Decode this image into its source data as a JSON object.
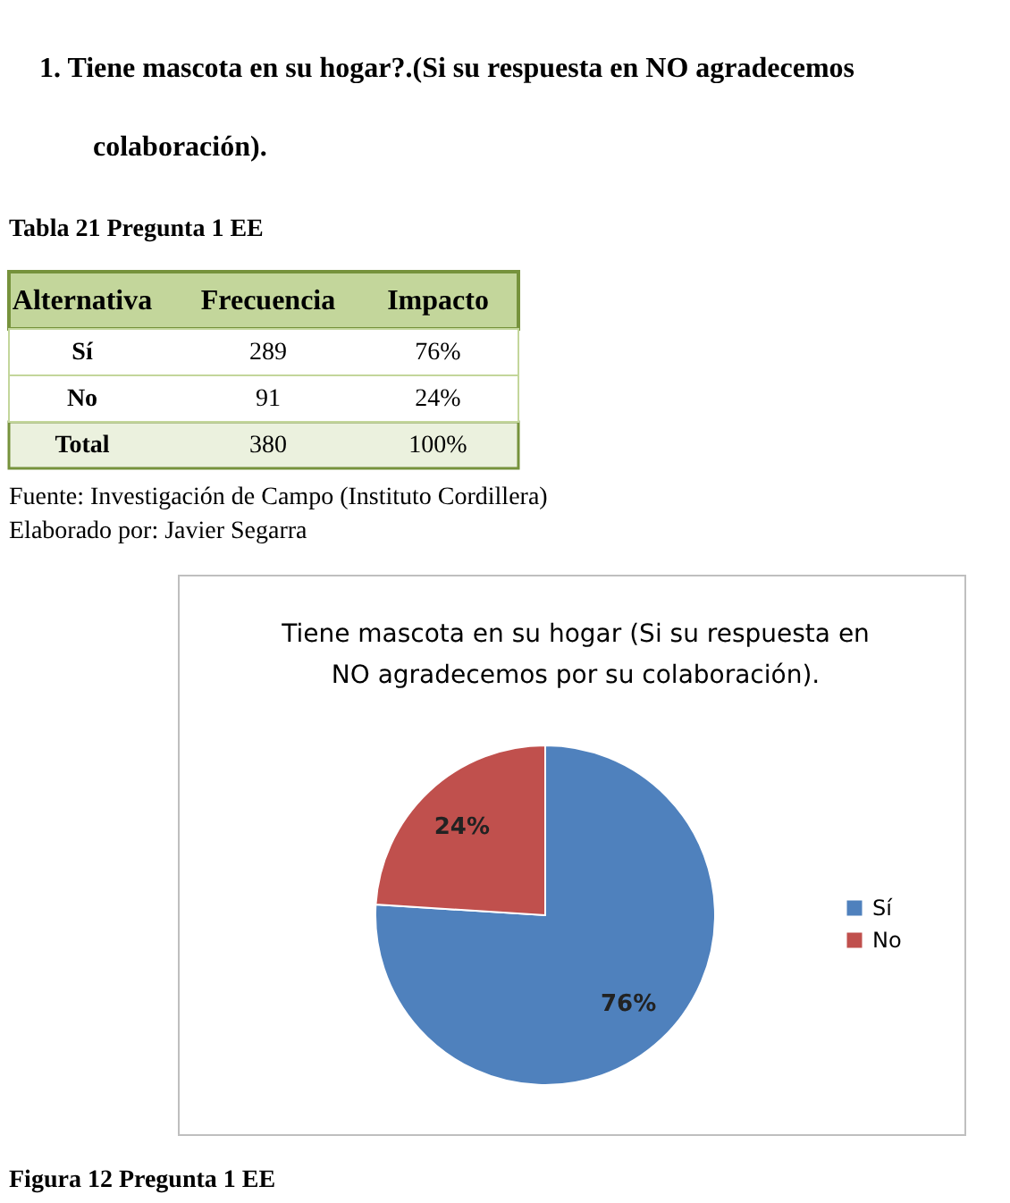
{
  "chart_data": [
    {
      "type": "other",
      "title": "1. Tiene mascota en su hogar?.(Si su respuesta en NO agradecemos colaboración).",
      "annotations": [
        "Tabla 21 Pregunta 1 EE",
        "Alternativa",
        "Frecuencia",
        "Impacto",
        "Sí",
        "289",
        "76%",
        "No",
        "91",
        "24%",
        "Total",
        "380",
        "100%",
        "Fuente: Investigación de Campo (Instituto Cordillera)",
        "Elaborado por: Javier Segarra"
      ]
    },
    {
      "type": "pie",
      "title": "Tiene mascota en su hogar (Si su respuesta en NO agradecemos por su colaboración).",
      "categories": [
        "Sí",
        "No"
      ],
      "values": [
        76,
        24
      ],
      "colors": [
        "#4f81bd",
        "#c0504d"
      ],
      "value_labels": [
        "76%",
        "24%"
      ],
      "legend": "right",
      "annotations": [
        "Figura 12 Pregunta 1 EE"
      ]
    }
  ]
}
